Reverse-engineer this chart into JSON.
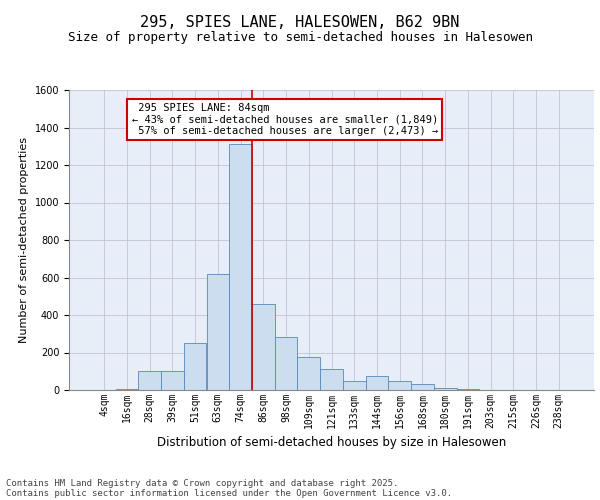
{
  "title": "295, SPIES LANE, HALESOWEN, B62 9BN",
  "subtitle": "Size of property relative to semi-detached houses in Halesowen",
  "xlabel": "Distribution of semi-detached houses by size in Halesowen",
  "ylabel": "Number of semi-detached properties",
  "categories": [
    "4sqm",
    "16sqm",
    "28sqm",
    "39sqm",
    "51sqm",
    "63sqm",
    "74sqm",
    "86sqm",
    "98sqm",
    "109sqm",
    "121sqm",
    "133sqm",
    "144sqm",
    "156sqm",
    "168sqm",
    "180sqm",
    "191sqm",
    "203sqm",
    "215sqm",
    "226sqm",
    "238sqm"
  ],
  "values": [
    2,
    5,
    100,
    100,
    250,
    620,
    1310,
    460,
    285,
    175,
    110,
    50,
    75,
    50,
    30,
    10,
    5,
    2,
    1,
    0,
    0
  ],
  "bar_color": "#ccddef",
  "bar_edge_color": "#5588bb",
  "grid_color": "#bbbbcc",
  "bg_color": "#e8eef8",
  "property_label": "295 SPIES LANE: 84sqm",
  "pct_smaller": 43,
  "pct_larger": 57,
  "n_smaller": 1849,
  "n_larger": 2473,
  "vline_color": "#cc0000",
  "annotation_box_color": "#cc0000",
  "vline_index": 7,
  "ylim": [
    0,
    1600
  ],
  "yticks": [
    0,
    200,
    400,
    600,
    800,
    1000,
    1200,
    1400,
    1600
  ],
  "footer_line1": "Contains HM Land Registry data © Crown copyright and database right 2025.",
  "footer_line2": "Contains public sector information licensed under the Open Government Licence v3.0.",
  "title_fontsize": 11,
  "subtitle_fontsize": 9,
  "tick_fontsize": 7,
  "ylabel_fontsize": 8,
  "xlabel_fontsize": 8.5,
  "annotation_fontsize": 7.5,
  "footer_fontsize": 6.5
}
